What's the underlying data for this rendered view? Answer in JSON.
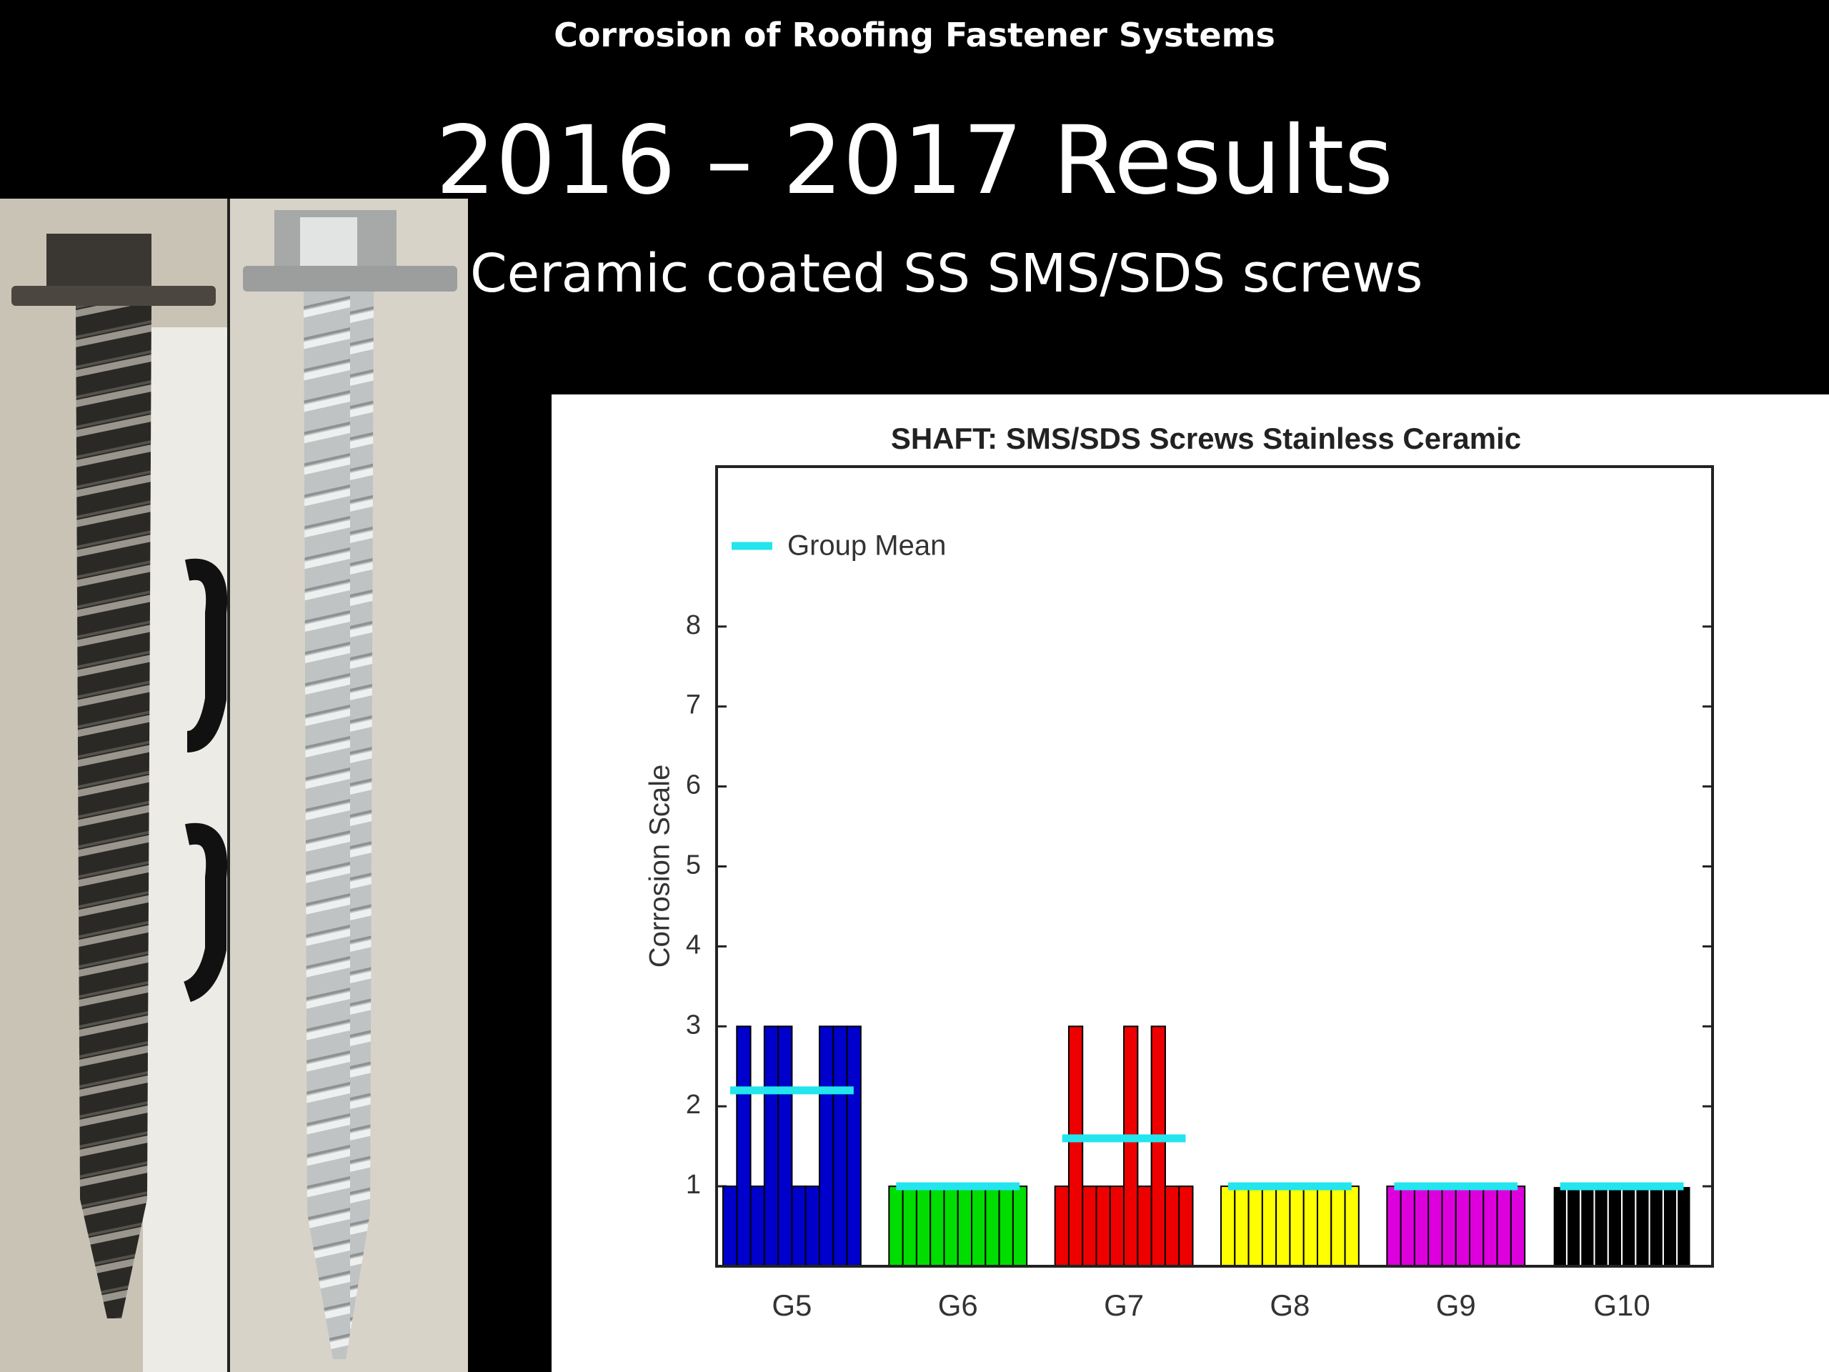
{
  "header": {
    "text": "Corrosion of Roofing Fastener Systems",
    "title": "2016 – 2017 Results",
    "subtitle": "Ceramic coated SS SMS/SDS screws"
  },
  "chart_data": {
    "type": "bar",
    "title": "SHAFT: SMS/SDS Screws Stainless Ceramic",
    "ylabel": "Corrosion Scale",
    "categories": [
      "G5",
      "G6",
      "G7",
      "G8",
      "G9",
      "G10"
    ],
    "colors": [
      "#0000cc",
      "#00dd00",
      "#ee0000",
      "#ffff00",
      "#dd00dd",
      "#000000"
    ],
    "values": [
      [
        1,
        3,
        1,
        3,
        3,
        1,
        1,
        3,
        3,
        3
      ],
      [
        1,
        1,
        1,
        1,
        1,
        1,
        1,
        1,
        1,
        1
      ],
      [
        1,
        3,
        1,
        1,
        1,
        3,
        1,
        3,
        1,
        1
      ],
      [
        1,
        1,
        1,
        1,
        1,
        1,
        1,
        1,
        1,
        1
      ],
      [
        1,
        1,
        1,
        1,
        1,
        1,
        1,
        1,
        1,
        1
      ],
      [
        1,
        1,
        1,
        1,
        1,
        1,
        1,
        1,
        1,
        1
      ]
    ],
    "means": [
      2.2,
      1,
      1.6,
      1,
      1,
      1
    ],
    "mean_label": "Group Mean",
    "mean_color": "#22e5ee",
    "ylim": [
      0,
      10
    ],
    "yticks": [
      1,
      2,
      3,
      4,
      5,
      6,
      7,
      8
    ],
    "grid": false,
    "legend": "upper left"
  }
}
